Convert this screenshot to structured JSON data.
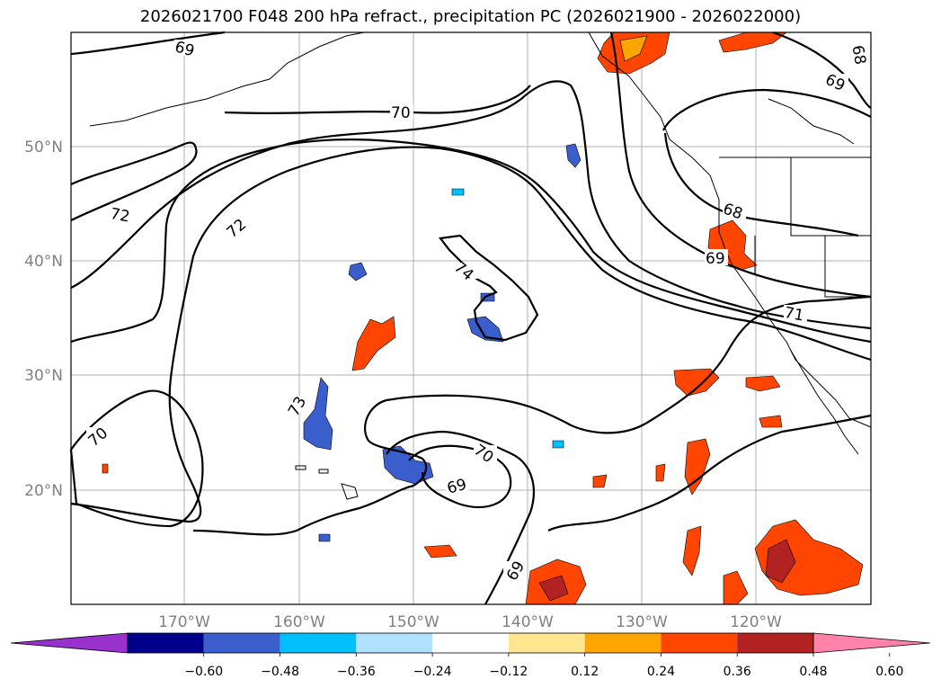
{
  "title": "2026021700 F048 200 hPa refract., precipitation PC (2026021900 - 2026022000)",
  "lat_labels": [
    "50°N",
    "40°N",
    "30°N",
    "20°N"
  ],
  "lon_labels": [
    "170°W",
    "160°W",
    "150°W",
    "140°W",
    "130°W",
    "120°W"
  ],
  "colorbar": {
    "ticks": [
      "−0.60",
      "−0.48",
      "−0.36",
      "−0.24",
      "−0.12",
      "0.12",
      "0.24",
      "0.36",
      "0.48",
      "0.60"
    ],
    "colors": [
      "#9932cc",
      "#00008b",
      "#3a5fcd",
      "#00bfff",
      "#b0e2ff",
      "#ffffff",
      "#ffe68f",
      "#ffa500",
      "#ff4500",
      "#b22222",
      "#ff82ab"
    ]
  },
  "contour_labels": [
    "69",
    "69",
    "70",
    "72",
    "72",
    "74",
    "73",
    "70",
    "70",
    "69",
    "68",
    "69",
    "71",
    "69",
    "68"
  ],
  "colors": {
    "precip_pos": [
      "#ffe68f",
      "#ffa500",
      "#ff4500",
      "#b22222"
    ],
    "precip_neg": [
      "#b0e2ff",
      "#00bfff",
      "#3a5fcd"
    ]
  }
}
